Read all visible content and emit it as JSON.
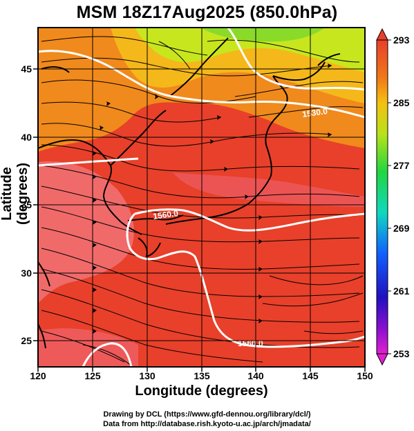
{
  "title": "MSM 18Z17Aug2025 (850.0hPa)",
  "xlabel": "Longitude (degrees)",
  "ylabel": "Latitude  (degrees)",
  "credit_line1": "Drawing by DCL (https://www.gfd-dennou.org/library/dcl/)",
  "credit_line2": "Data from http://database.rish.kyoto-u.ac.jp/arch/jmadata/",
  "x_ticks": [
    "120",
    "125",
    "130",
    "135",
    "140",
    "145",
    "150"
  ],
  "y_ticks": [
    "25",
    "30",
    "35",
    "40",
    "45"
  ],
  "colorbar": {
    "ticks": [
      "293",
      "285",
      "277",
      "269",
      "261",
      "253"
    ],
    "max_value": 293,
    "min_value": 253
  },
  "contour_labels": [
    "1530.0",
    "1560.0",
    "1560.0"
  ],
  "chart_data": {
    "type": "heatmap",
    "title": "MSM 18Z17Aug2025 (850.0hPa)",
    "xlabel": "Longitude (degrees)",
    "ylabel": "Latitude  (degrees)",
    "xlim": [
      120,
      150
    ],
    "ylim": [
      22.5,
      47.5
    ],
    "x_ticks": [
      120,
      125,
      130,
      135,
      140,
      145,
      150
    ],
    "y_ticks": [
      25,
      30,
      35,
      40,
      45
    ],
    "colorbar_range": [
      253,
      293
    ],
    "colorbar_ticks": [
      293,
      285,
      277,
      269,
      261,
      253
    ],
    "contour_levels": [
      1530,
      1560
    ],
    "overlays": [
      "temperature shading",
      "wind streamlines",
      "geopotential height contours",
      "coastlines"
    ],
    "grid": true
  },
  "colors": {
    "warm": "#e8402a",
    "hot": "#f06a6a",
    "mid": "#f08a1c",
    "cool": "#c8e61e",
    "contour": "#ffffff"
  }
}
